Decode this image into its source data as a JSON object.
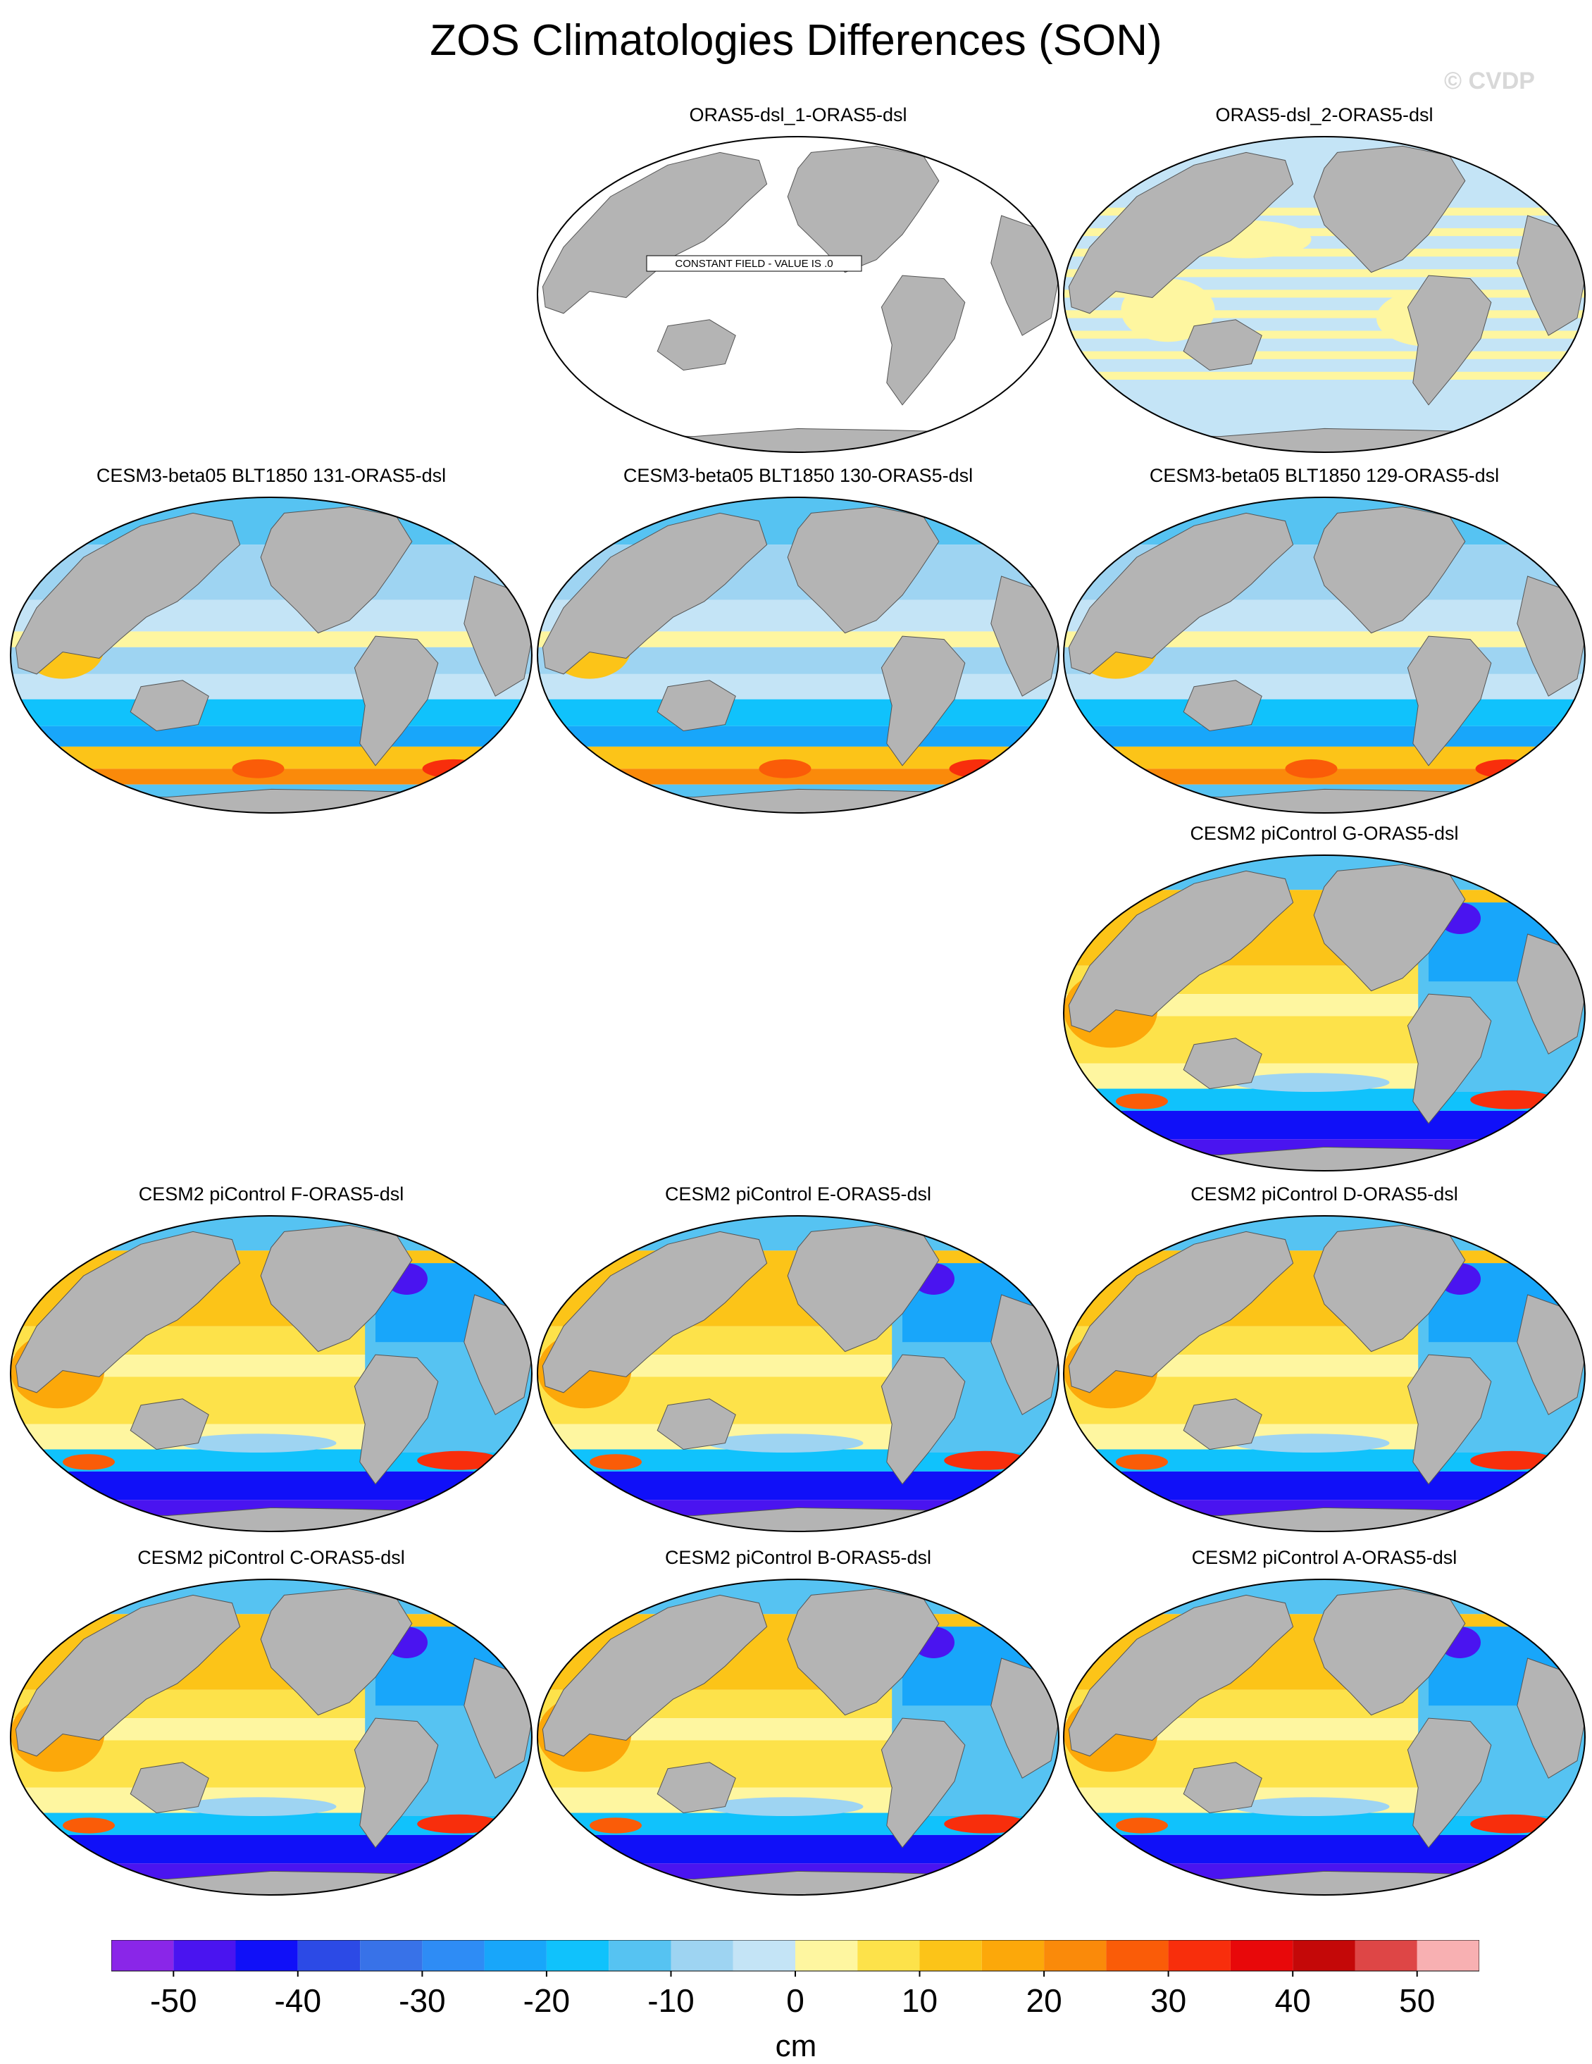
{
  "title": "ZOS Climatologies Differences (SON)",
  "watermark": "© CVDP",
  "colors": {
    "land": "#b4b4b4",
    "coast": "#555555",
    "levels": [
      "#8a26e8",
      "#4a14f0",
      "#1010f8",
      "#2c4ae6",
      "#3872e8",
      "#2e8cf5",
      "#18a6fa",
      "#10c2fc",
      "#56c3f2",
      "#9ed4f2",
      "#c4e4f6",
      "#fef6a0",
      "#fde24a",
      "#fcc418",
      "#fca80a",
      "#fa8a0a",
      "#fa5c08",
      "#f82e0c",
      "#e8080a",
      "#c40808",
      "#de4646",
      "#f8b0b2"
    ]
  },
  "constant_field_label": "CONSTANT FIELD - VALUE IS .0",
  "panels": [
    {
      "id": "orasdsl1",
      "title": "ORAS5-dsl_1-ORAS5-dsl",
      "pattern": "constant"
    },
    {
      "id": "orasdsl2",
      "title": "ORAS5-dsl_2-ORAS5-dsl",
      "pattern": "small"
    },
    {
      "id": "beta131",
      "title": "CESM3-beta05 BLT1850 131-ORAS5-dsl",
      "pattern": "beta"
    },
    {
      "id": "beta130",
      "title": "CESM3-beta05 BLT1850 130-ORAS5-dsl",
      "pattern": "beta"
    },
    {
      "id": "beta129",
      "title": "CESM3-beta05 BLT1850 129-ORAS5-dsl",
      "pattern": "beta"
    },
    {
      "id": "picG",
      "title": "CESM2 piControl G-ORAS5-dsl",
      "pattern": "pic"
    },
    {
      "id": "picF",
      "title": "CESM2 piControl F-ORAS5-dsl",
      "pattern": "pic"
    },
    {
      "id": "picE",
      "title": "CESM2 piControl E-ORAS5-dsl",
      "pattern": "pic"
    },
    {
      "id": "picD",
      "title": "CESM2 piControl D-ORAS5-dsl",
      "pattern": "pic"
    },
    {
      "id": "picC",
      "title": "CESM2 piControl C-ORAS5-dsl",
      "pattern": "pic"
    },
    {
      "id": "picB",
      "title": "CESM2 piControl B-ORAS5-dsl",
      "pattern": "pic"
    },
    {
      "id": "picA",
      "title": "CESM2 piControl A-ORAS5-dsl",
      "pattern": "pic"
    }
  ],
  "colorbar": {
    "tick_labels": [
      "-50",
      "-40",
      "-30",
      "-20",
      "-10",
      "0",
      "10",
      "20",
      "30",
      "40",
      "50"
    ],
    "unit": "cm"
  }
}
